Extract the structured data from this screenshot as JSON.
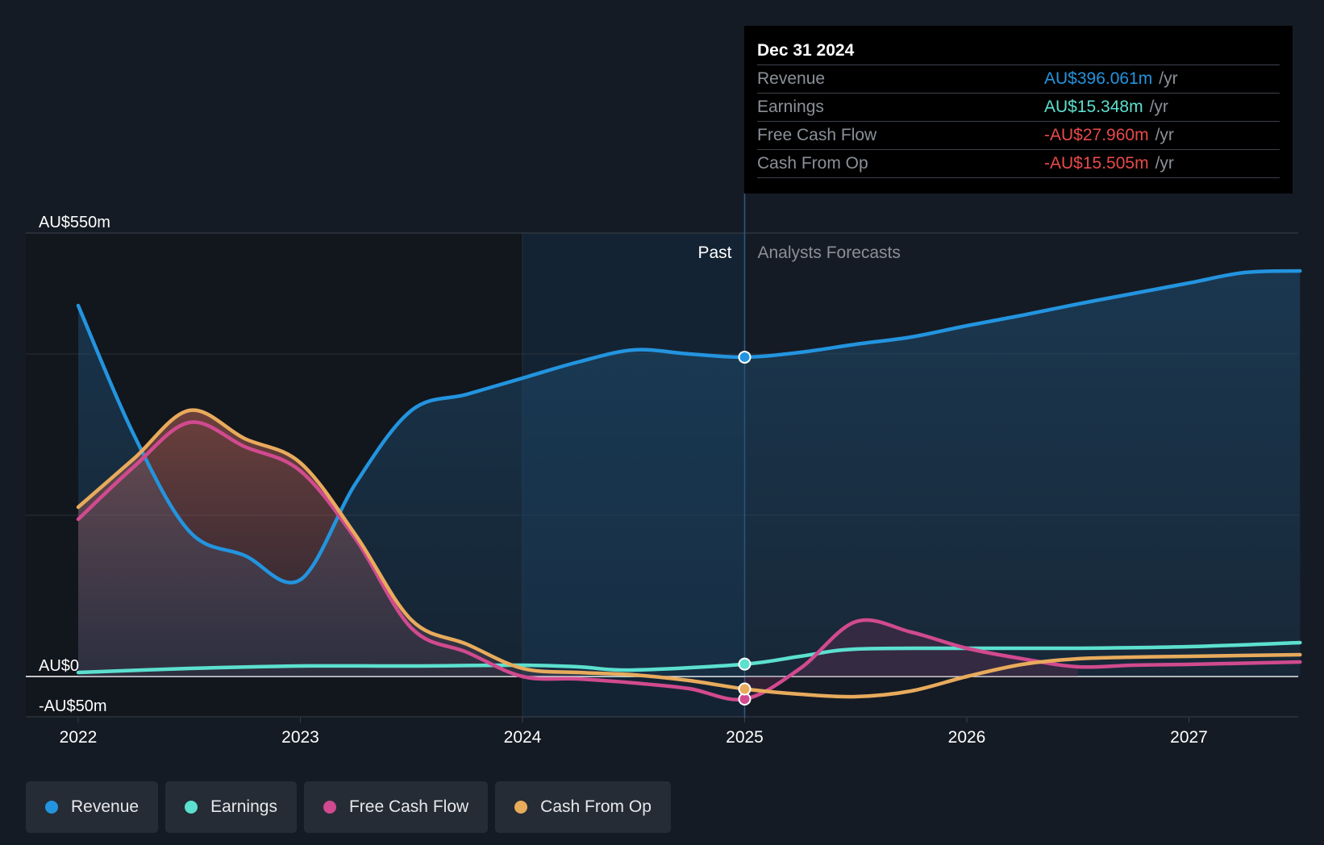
{
  "chart_data": {
    "type": "area",
    "title": "",
    "xlabel": "",
    "ylabel": "",
    "ylim": [
      -50,
      550
    ],
    "y_tick_labels": [
      "AU$550m",
      "AU$0",
      "-AU$50m"
    ],
    "x_tick_labels": [
      "2022",
      "2023",
      "2024",
      "2025",
      "2026",
      "2027"
    ],
    "x_range": [
      2021.75,
      2027.5
    ],
    "divider_x": 2025.0,
    "past_label": "Past",
    "forecast_label": "Analysts Forecasts",
    "series": [
      {
        "name": "Revenue",
        "color": "#2394df",
        "points": [
          [
            2022.0,
            460
          ],
          [
            2022.25,
            300
          ],
          [
            2022.5,
            180
          ],
          [
            2022.75,
            150
          ],
          [
            2023.0,
            120
          ],
          [
            2023.25,
            240
          ],
          [
            2023.5,
            330
          ],
          [
            2023.75,
            350
          ],
          [
            2024.0,
            370
          ],
          [
            2024.25,
            390
          ],
          [
            2024.5,
            405
          ],
          [
            2024.75,
            400
          ],
          [
            2025.0,
            396.061
          ],
          [
            2025.25,
            402
          ],
          [
            2025.5,
            412
          ],
          [
            2025.75,
            421
          ],
          [
            2026.0,
            435
          ],
          [
            2026.25,
            448
          ],
          [
            2026.5,
            462
          ],
          [
            2026.75,
            475
          ],
          [
            2027.0,
            488
          ],
          [
            2027.25,
            501
          ],
          [
            2027.5,
            503
          ]
        ]
      },
      {
        "name": "Earnings",
        "color": "#5ce0cf",
        "points": [
          [
            2022.0,
            5
          ],
          [
            2022.5,
            10
          ],
          [
            2023.0,
            13
          ],
          [
            2023.5,
            13
          ],
          [
            2024.0,
            14
          ],
          [
            2024.25,
            12
          ],
          [
            2024.5,
            8
          ],
          [
            2025.0,
            15.348
          ],
          [
            2025.25,
            25
          ],
          [
            2025.5,
            34
          ],
          [
            2026.0,
            35
          ],
          [
            2026.5,
            35
          ],
          [
            2027.0,
            37
          ],
          [
            2027.5,
            42
          ]
        ]
      },
      {
        "name": "Free Cash Flow",
        "color": "#d14a8f",
        "points": [
          [
            2022.0,
            195
          ],
          [
            2022.25,
            260
          ],
          [
            2022.5,
            315
          ],
          [
            2022.75,
            285
          ],
          [
            2023.0,
            255
          ],
          [
            2023.25,
            170
          ],
          [
            2023.5,
            60
          ],
          [
            2023.75,
            30
          ],
          [
            2024.0,
            0
          ],
          [
            2024.25,
            -3
          ],
          [
            2024.5,
            -8
          ],
          [
            2024.75,
            -15
          ],
          [
            2025.0,
            -27.96
          ],
          [
            2025.25,
            10
          ],
          [
            2025.5,
            68
          ],
          [
            2025.75,
            55
          ],
          [
            2026.0,
            35
          ],
          [
            2026.25,
            22
          ],
          [
            2026.5,
            12
          ],
          [
            2026.75,
            14
          ],
          [
            2027.0,
            15
          ],
          [
            2027.5,
            18
          ]
        ]
      },
      {
        "name": "Cash From Op",
        "color": "#e8ab5c",
        "points": [
          [
            2022.0,
            210
          ],
          [
            2022.25,
            270
          ],
          [
            2022.5,
            330
          ],
          [
            2022.75,
            295
          ],
          [
            2023.0,
            265
          ],
          [
            2023.25,
            175
          ],
          [
            2023.5,
            70
          ],
          [
            2023.75,
            40
          ],
          [
            2024.0,
            10
          ],
          [
            2024.25,
            5
          ],
          [
            2024.5,
            2
          ],
          [
            2024.75,
            -5
          ],
          [
            2025.0,
            -15.505
          ],
          [
            2025.25,
            -22
          ],
          [
            2025.5,
            -25
          ],
          [
            2025.75,
            -18
          ],
          [
            2026.0,
            0
          ],
          [
            2026.25,
            15
          ],
          [
            2026.5,
            22
          ],
          [
            2026.75,
            24
          ],
          [
            2027.0,
            25
          ],
          [
            2027.5,
            27
          ]
        ]
      }
    ]
  },
  "tooltip": {
    "date": "Dec 31 2024",
    "unit": "/yr",
    "rows": [
      {
        "label": "Revenue",
        "value": "AU$396.061m",
        "color": "#2394df"
      },
      {
        "label": "Earnings",
        "value": "AU$15.348m",
        "color": "#5ce0cf"
      },
      {
        "label": "Free Cash Flow",
        "value": "-AU$27.960m",
        "color": "#e84a4a"
      },
      {
        "label": "Cash From Op",
        "value": "-AU$15.505m",
        "color": "#e84a4a"
      }
    ]
  },
  "legend": {
    "items": [
      {
        "label": "Revenue",
        "color": "#2394df"
      },
      {
        "label": "Earnings",
        "color": "#5ce0cf"
      },
      {
        "label": "Free Cash Flow",
        "color": "#d14a8f"
      },
      {
        "label": "Cash From Op",
        "color": "#e8ab5c"
      }
    ]
  }
}
